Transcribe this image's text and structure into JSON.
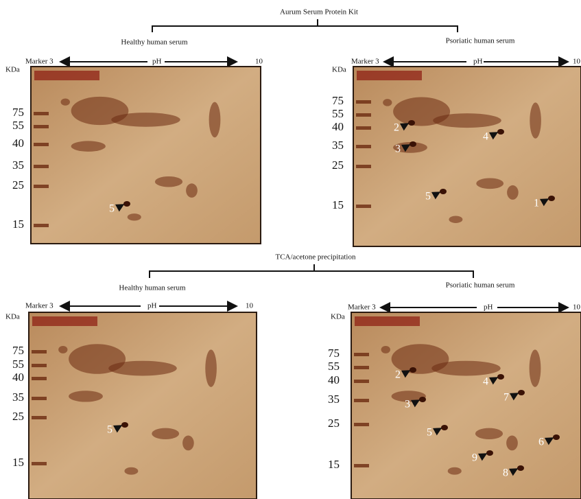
{
  "sections": [
    {
      "title": "Aurum Serum Protein Kit",
      "panels": [
        {
          "title": "Healthy human serum",
          "marker": "Marker 3",
          "ph": "pH",
          "end": "10",
          "unit": "KDa",
          "mw": [
            "75",
            "55",
            "40",
            "35",
            "25",
            "15"
          ],
          "spots": [
            "5"
          ]
        },
        {
          "title": "Psoriatic human serum",
          "marker": "Marker 3",
          "ph": "pH",
          "end": "10",
          "unit": "KDa",
          "mw": [
            "75",
            "55",
            "40",
            "35",
            "25",
            "15"
          ],
          "spots": [
            "2",
            "3",
            "4",
            "5",
            "1"
          ]
        }
      ]
    },
    {
      "title": "TCA/acetone precipitation",
      "panels": [
        {
          "title": "Healthy human serum",
          "marker": "Marker 3",
          "ph": "pH",
          "end": "10",
          "unit": "KDa",
          "mw": [
            "75",
            "55",
            "40",
            "35",
            "25",
            "15"
          ],
          "spots": [
            "5"
          ]
        },
        {
          "title": "Psoriatic human serum",
          "marker": "Marker 3",
          "ph": "pH",
          "end": "10",
          "unit": "KDa",
          "mw": [
            "75",
            "55",
            "40",
            "35",
            "25",
            "15"
          ],
          "spots": [
            "2",
            "3",
            "4",
            "7",
            "5",
            "6",
            "9",
            "8"
          ]
        }
      ]
    }
  ]
}
